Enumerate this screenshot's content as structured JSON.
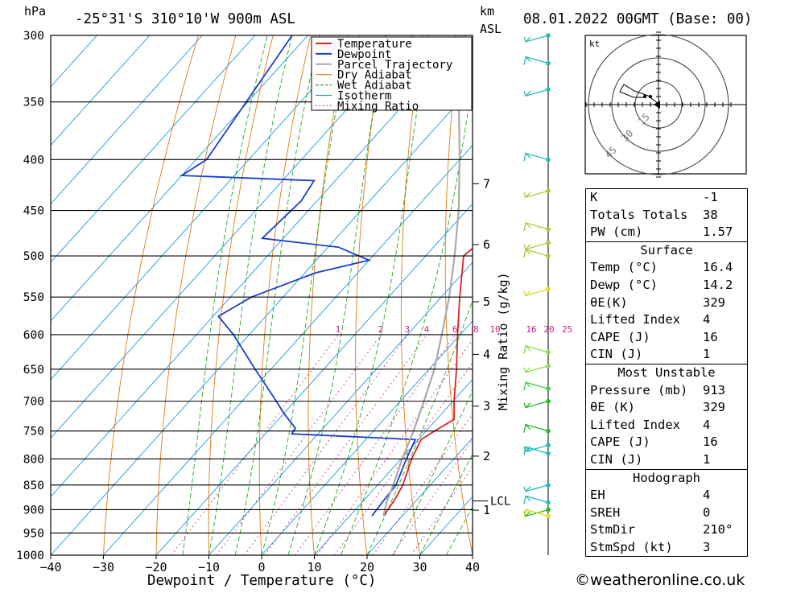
{
  "header": {
    "location": "-25°31'S 310°10'W 900m ASL",
    "hpa_label": "hPa",
    "km_label": "km",
    "asl_label": "ASL",
    "datetime": "08.01.2022 00GMT (Base: 00)"
  },
  "chart_data": {
    "type": "skew-t",
    "xlabel": "Dewpoint / Temperature (°C)",
    "mixing_axis_label": "Mixing Ratio (g/kg)",
    "pressure_ticks": [
      300,
      350,
      400,
      450,
      500,
      550,
      600,
      650,
      700,
      750,
      800,
      850,
      900,
      950,
      1000
    ],
    "temp_ticks": [
      -40,
      -30,
      -20,
      -10,
      0,
      10,
      20,
      30,
      40
    ],
    "ylim_hpa": [
      1000,
      300
    ],
    "xlim_celsius_at_1000": [
      -40,
      40
    ],
    "km_ticks": [
      {
        "label": "7",
        "p": 423
      },
      {
        "label": "6",
        "p": 487
      },
      {
        "label": "5",
        "p": 556
      },
      {
        "label": "4",
        "p": 628
      },
      {
        "label": "3",
        "p": 708
      },
      {
        "label": "2",
        "p": 795
      },
      {
        "label": "1",
        "p": 901
      }
    ],
    "lcl": {
      "label": "LCL",
      "p": 882
    },
    "mixing_ratio_labels": [
      "1",
      "2",
      "3",
      "4",
      "6",
      "8",
      "10",
      "16",
      "20",
      "25"
    ],
    "legend": [
      "Temperature",
      "Dewpoint",
      "Parcel Trajectory",
      "Dry Adiabat",
      "Wet Adiabat",
      "Isotherm",
      "Mixing Ratio"
    ],
    "series": [
      {
        "name": "Temperature",
        "color": "#dd2222",
        "points": [
          [
            913,
            16.4
          ],
          [
            880,
            15.8
          ],
          [
            850,
            14.8
          ],
          [
            800,
            12.0
          ],
          [
            765,
            10.5
          ],
          [
            750,
            11.6
          ],
          [
            730,
            13.3
          ],
          [
            700,
            10.2
          ],
          [
            650,
            5.2
          ],
          [
            600,
            -0.5
          ],
          [
            550,
            -6.5
          ],
          [
            500,
            -12.8
          ],
          [
            490,
            -12.3
          ],
          [
            475,
            -13.8
          ],
          [
            450,
            -17.5
          ],
          [
            428,
            -20.8
          ],
          [
            420,
            -20.0
          ],
          [
            410,
            -19.2
          ],
          [
            400,
            -19.0
          ],
          [
            380,
            -20.8
          ],
          [
            350,
            -26.0
          ],
          [
            300,
            -36.0
          ]
        ]
      },
      {
        "name": "Dewpoint",
        "color": "#1a3fd0",
        "points": [
          [
            913,
            14.2
          ],
          [
            880,
            13.8
          ],
          [
            850,
            13.5
          ],
          [
            800,
            11.0
          ],
          [
            765,
            9.4
          ],
          [
            755,
            -15.0
          ],
          [
            745,
            -15.3
          ],
          [
            720,
            -20.0
          ],
          [
            700,
            -23.5
          ],
          [
            650,
            -33.0
          ],
          [
            600,
            -43.0
          ],
          [
            575,
            -49.0
          ],
          [
            550,
            -46.0
          ],
          [
            520,
            -38.0
          ],
          [
            505,
            -30.0
          ],
          [
            490,
            -38.0
          ],
          [
            480,
            -54.0
          ],
          [
            440,
            -53.0
          ],
          [
            420,
            -54.0
          ],
          [
            415,
            -80.0
          ],
          [
            400,
            -78.0
          ],
          [
            300,
            -83.0
          ]
        ]
      },
      {
        "name": "Parcel Trajectory",
        "color": "#aaaaaa",
        "points": [
          [
            913,
            16.4
          ],
          [
            882,
            14.5
          ],
          [
            850,
            13.0
          ],
          [
            800,
            10.2
          ],
          [
            750,
            7.6
          ],
          [
            700,
            4.5
          ],
          [
            650,
            1.0
          ],
          [
            600,
            -3.5
          ],
          [
            550,
            -8.5
          ],
          [
            500,
            -14.5
          ],
          [
            450,
            -21.5
          ],
          [
            400,
            -30.0
          ],
          [
            350,
            -40.0
          ],
          [
            300,
            -52.0
          ]
        ]
      }
    ],
    "wind_profile": [
      {
        "p": 300,
        "color": "#22bbbb"
      },
      {
        "p": 320,
        "color": "#22bbbb"
      },
      {
        "p": 340,
        "color": "#22bbbb"
      },
      {
        "p": 400,
        "color": "#22bbbb"
      },
      {
        "p": 430,
        "color": "#aacc33"
      },
      {
        "p": 470,
        "color": "#aacc33"
      },
      {
        "p": 485,
        "color": "#aacc33"
      },
      {
        "p": 500,
        "color": "#aacc33"
      },
      {
        "p": 540,
        "color": "#dddd22"
      },
      {
        "p": 625,
        "color": "#88dd44"
      },
      {
        "p": 645,
        "color": "#88dd44"
      },
      {
        "p": 680,
        "color": "#44cc44"
      },
      {
        "p": 700,
        "color": "#22bb22"
      },
      {
        "p": 750,
        "color": "#22bb22"
      },
      {
        "p": 775,
        "color": "#22bbbb"
      },
      {
        "p": 790,
        "color": "#22bbbb"
      },
      {
        "p": 850,
        "color": "#22bbbb"
      },
      {
        "p": 885,
        "color": "#22bbbb"
      },
      {
        "p": 900,
        "color": "#22bb22"
      },
      {
        "p": 913,
        "color": "#dddd22"
      }
    ],
    "hodograph": {
      "unit_label": "kt",
      "ring_labels": [
        "15",
        "30",
        "45"
      ]
    }
  },
  "indices": {
    "rows": [
      {
        "label": "K",
        "value": "-1"
      },
      {
        "label": "Totals Totals",
        "value": "38"
      },
      {
        "label": "PW (cm)",
        "value": "1.57"
      }
    ]
  },
  "surface": {
    "title": "Surface",
    "rows": [
      {
        "label": "Temp (°C)",
        "value": "16.4"
      },
      {
        "label": "Dewp (°C)",
        "value": "14.2"
      },
      {
        "label": "θE(K)",
        "value": "329"
      },
      {
        "label": "Lifted Index",
        "value": "4"
      },
      {
        "label": "CAPE (J)",
        "value": "16"
      },
      {
        "label": "CIN (J)",
        "value": "1"
      }
    ]
  },
  "most_unstable": {
    "title": "Most Unstable",
    "rows": [
      {
        "label": "Pressure (mb)",
        "value": "913"
      },
      {
        "label": "θE (K)",
        "value": "329"
      },
      {
        "label": "Lifted Index",
        "value": "4"
      },
      {
        "label": "CAPE (J)",
        "value": "16"
      },
      {
        "label": "CIN (J)",
        "value": "1"
      }
    ]
  },
  "hodograph_table": {
    "title": "Hodograph",
    "rows": [
      {
        "label": "EH",
        "value": "4"
      },
      {
        "label": "SREH",
        "value": "0"
      },
      {
        "label": "StmDir",
        "value": "210°"
      },
      {
        "label": "StmSpd (kt)",
        "value": "3"
      }
    ]
  },
  "footer": {
    "copyright": "©weatheronline.co.uk"
  },
  "colors": {
    "temperature": "#dd2222",
    "dewpoint": "#1a3fd0",
    "parcel": "#aaaaaa",
    "dry_adiabat": "#e07b10",
    "wet_adiabat": "#22aa22",
    "isotherm": "#1e9ae0",
    "mixing_ratio": "#cc2288"
  }
}
